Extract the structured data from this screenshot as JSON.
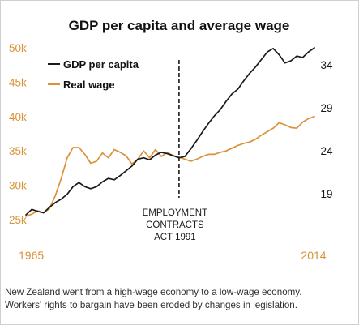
{
  "chart_data": {
    "type": "line",
    "title": "GDP per capita and average wage",
    "x_start_label": "1965",
    "x_end_label": "2014",
    "xlim": [
      1965,
      2014
    ],
    "left_axis": {
      "ticks": [
        "25k",
        "30k",
        "35k",
        "40k",
        "45k",
        "50k"
      ],
      "range": [
        25000,
        50000
      ],
      "color": "#d9923a"
    },
    "right_axis": {
      "ticks": [
        "19",
        "24",
        "29",
        "34"
      ],
      "range": [
        16,
        36
      ],
      "color": "#1a1a1a"
    },
    "legend": {
      "position": "top-left"
    },
    "annotation": {
      "x": 1991,
      "lines": [
        "EMPLOYMENT",
        "CONTRACTS",
        "ACT 1991"
      ]
    },
    "series": [
      {
        "name": "GDP per capita",
        "axis": "left",
        "color": "#1a1a1a",
        "x": [
          1965,
          1966,
          1967,
          1968,
          1969,
          1970,
          1971,
          1972,
          1973,
          1974,
          1975,
          1976,
          1977,
          1978,
          1979,
          1980,
          1981,
          1982,
          1983,
          1984,
          1985,
          1986,
          1987,
          1988,
          1989,
          1990,
          1991,
          1992,
          1993,
          1994,
          1995,
          1996,
          1997,
          1998,
          1999,
          2000,
          2001,
          2002,
          2003,
          2004,
          2005,
          2006,
          2007,
          2008,
          2009,
          2010,
          2011,
          2012,
          2013,
          2014
        ],
        "values": [
          25700,
          26500,
          26200,
          26000,
          26800,
          27500,
          28000,
          28700,
          29800,
          30400,
          29800,
          29500,
          29800,
          30500,
          31000,
          30800,
          31400,
          32100,
          32800,
          33800,
          34000,
          33700,
          34400,
          34800,
          34600,
          34300,
          34000,
          34200,
          35300,
          36500,
          37800,
          39000,
          40100,
          41000,
          42200,
          43300,
          44000,
          45200,
          46300,
          47200,
          48300,
          49400,
          49900,
          49000,
          47800,
          48100,
          48800,
          48600,
          49400,
          50000
        ]
      },
      {
        "name": "Real wage",
        "axis": "left",
        "color": "#d9923a",
        "x": [
          1965,
          1966,
          1967,
          1968,
          1969,
          1970,
          1971,
          1972,
          1973,
          1974,
          1975,
          1976,
          1977,
          1978,
          1979,
          1980,
          1981,
          1982,
          1983,
          1984,
          1985,
          1986,
          1987,
          1988,
          1989,
          1990,
          1991,
          1992,
          1993,
          1994,
          1995,
          1996,
          1997,
          1998,
          1999,
          2000,
          2001,
          2002,
          2003,
          2004,
          2005,
          2006,
          2007,
          2008,
          2009,
          2010,
          2011,
          2012,
          2013,
          2014
        ],
        "values": [
          25500,
          25800,
          26300,
          26000,
          26600,
          28500,
          31000,
          34000,
          35500,
          35500,
          34500,
          33200,
          33500,
          34700,
          34000,
          35200,
          34800,
          34300,
          33100,
          33800,
          35000,
          34000,
          35200,
          34200,
          34800,
          34300,
          34100,
          33800,
          33500,
          33800,
          34200,
          34500,
          34500,
          34800,
          35000,
          35400,
          35800,
          36100,
          36300,
          36700,
          37300,
          37800,
          38300,
          39100,
          38800,
          38400,
          38300,
          39200,
          39700,
          40000
        ]
      }
    ]
  },
  "caption": {
    "line1": "New Zealand went from a high-wage economy to a low-wage economy.",
    "line2": "Workers' rights to bargain have been eroded by changes in legislation."
  }
}
